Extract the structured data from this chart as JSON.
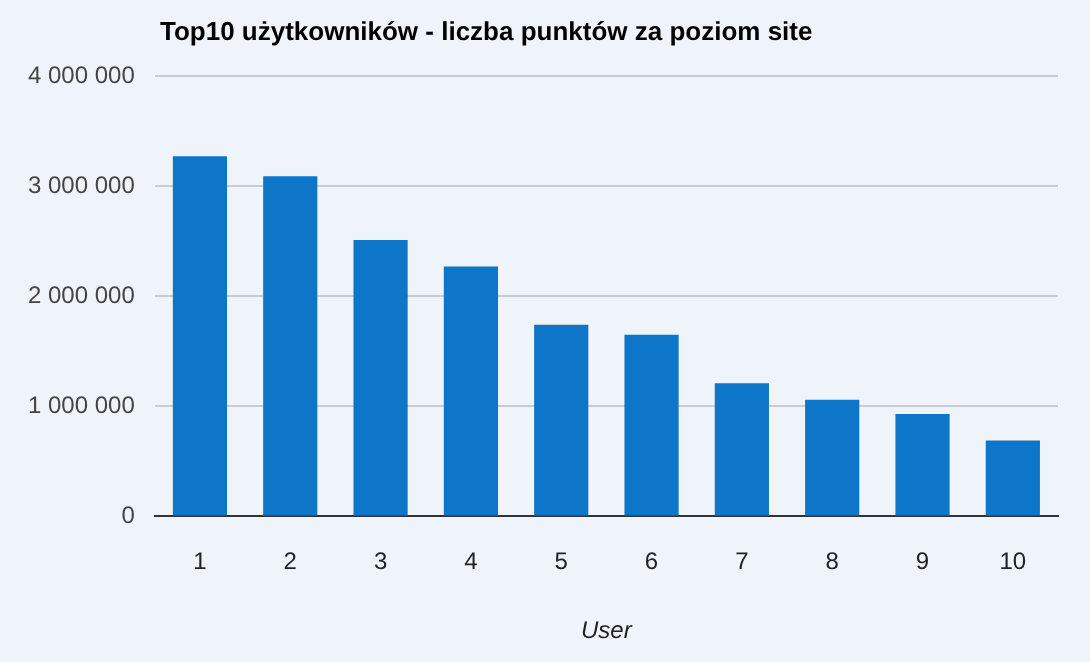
{
  "chart_data": {
    "type": "bar",
    "title": "Top10 użytkowników - liczba punktów za poziom site",
    "xlabel": "User",
    "categories": [
      "1",
      "2",
      "3",
      "4",
      "5",
      "6",
      "7",
      "8",
      "9",
      "10"
    ],
    "values": [
      3270000,
      3090000,
      2510000,
      2270000,
      1740000,
      1650000,
      1210000,
      1060000,
      930000,
      690000
    ],
    "color": "#0e76c8",
    "ylim": [
      0,
      4000000
    ],
    "yticks": [
      0,
      {
        "value": 1000000,
        "label": "1 000 000"
      },
      {
        "value": 2000000,
        "label": "2 000 000"
      },
      {
        "value": 3000000,
        "label": "3 000 000"
      },
      {
        "value": 4000000,
        "label": "4 000 000"
      }
    ],
    "grid": "y",
    "legend": false
  }
}
